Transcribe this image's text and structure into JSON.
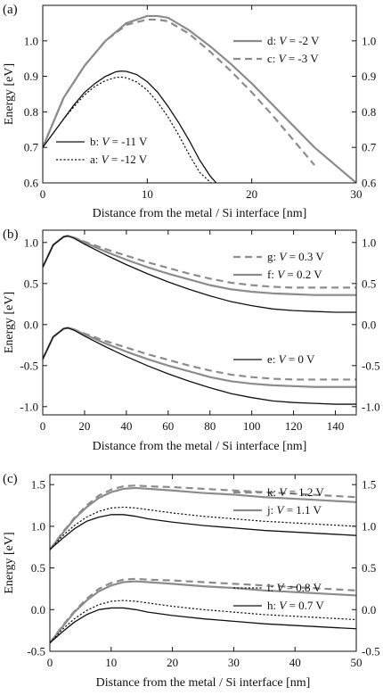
{
  "panels": [
    {
      "panel_label": "(a)",
      "chart_data": {
        "type": "line",
        "xlabel": "Distance from the metal / Si interface [nm]",
        "ylabel": "Energy [eV]",
        "xlim": [
          0,
          30
        ],
        "ylim": [
          0.6,
          1.1
        ],
        "x_ticks": [
          0,
          10,
          20,
          30
        ],
        "y_ticks": [
          0.6,
          0.7,
          0.8,
          0.9,
          1.0
        ],
        "y_tick_labels": [
          "0.6",
          "0.7",
          "0.8",
          "0.9",
          "1.0"
        ],
        "right_axis": true,
        "legend": [
          {
            "position": "top-right",
            "entries": [
              {
                "key": "d",
                "prefix": "d: ",
                "var": "V",
                "value": " = -2 V"
              },
              {
                "key": "c",
                "prefix": "c: ",
                "var": "V",
                "value": " = -3 V"
              }
            ]
          },
          {
            "position": "bottom-left",
            "entries": [
              {
                "key": "b",
                "prefix": "b: ",
                "var": "V",
                "value": " = -11 V"
              },
              {
                "key": "a",
                "prefix": "a: ",
                "var": "V",
                "value": " = -12 V"
              }
            ]
          }
        ],
        "series": [
          {
            "name": "d",
            "style": "gray-solid",
            "x": [
              0,
              1,
              2,
              4,
              6,
              8,
              10,
              11,
              12,
              14,
              16,
              18,
              20,
              22,
              24,
              26,
              28,
              30
            ],
            "y": [
              0.7,
              0.77,
              0.84,
              0.93,
              1.0,
              1.05,
              1.07,
              1.07,
              1.065,
              1.03,
              0.985,
              0.935,
              0.88,
              0.82,
              0.76,
              0.7,
              0.65,
              0.6
            ]
          },
          {
            "name": "c",
            "style": "gray-dashed",
            "x": [
              0,
              1,
              2,
              4,
              6,
              8,
              10,
              11,
              12,
              14,
              16,
              18,
              20,
              22,
              24,
              26
            ],
            "y": [
              0.7,
              0.77,
              0.84,
              0.93,
              1.0,
              1.045,
              1.06,
              1.06,
              1.055,
              1.02,
              0.97,
              0.915,
              0.855,
              0.79,
              0.72,
              0.65
            ]
          },
          {
            "name": "b",
            "style": "black-solid",
            "x": [
              0,
              1,
              2,
              3,
              4,
              5,
              6,
              7,
              7.5,
              8,
              9,
              10,
              11,
              12,
              13,
              14,
              15,
              16,
              16.6
            ],
            "y": [
              0.7,
              0.74,
              0.78,
              0.82,
              0.855,
              0.88,
              0.9,
              0.913,
              0.915,
              0.914,
              0.905,
              0.885,
              0.855,
              0.815,
              0.77,
              0.72,
              0.665,
              0.62,
              0.6
            ]
          },
          {
            "name": "a",
            "style": "black-dotted",
            "x": [
              0,
              1,
              2,
              3,
              4,
              5,
              6,
              7,
              7.5,
              8,
              9,
              10,
              11,
              12,
              13,
              14,
              15,
              16.1
            ],
            "y": [
              0.7,
              0.74,
              0.78,
              0.815,
              0.848,
              0.872,
              0.888,
              0.897,
              0.898,
              0.896,
              0.884,
              0.861,
              0.827,
              0.785,
              0.735,
              0.68,
              0.63,
              0.6
            ]
          }
        ]
      }
    },
    {
      "panel_label": "(b)",
      "chart_data": {
        "type": "line",
        "xlabel": "Distance from the metal / Si interface [nm]",
        "ylabel": "Energy [eV]",
        "xlim": [
          0,
          150
        ],
        "ylim": [
          -1.1,
          1.15
        ],
        "x_ticks": [
          0,
          20,
          40,
          60,
          80,
          100,
          120,
          140
        ],
        "y_ticks": [
          -1.0,
          -0.5,
          0.0,
          0.5,
          1.0
        ],
        "y_tick_labels": [
          "-1.0",
          "-0.5",
          "0.0",
          "0.5",
          "1.0"
        ],
        "right_axis": true,
        "legend": [
          {
            "position": "top-right",
            "entries": [
              {
                "key": "g",
                "prefix": "g: ",
                "var": "V",
                "value": " = 0.3 V"
              },
              {
                "key": "f",
                "prefix": "f: ",
                "var": "V",
                "value": " = 0.2 V"
              }
            ]
          },
          {
            "position": "middle-right",
            "entries": [
              {
                "key": "e",
                "prefix": "e: ",
                "var": "V",
                "value": " = 0 V"
              }
            ]
          }
        ],
        "series": [
          {
            "name": "g",
            "style": "gray-dashed",
            "x": [
              0,
              5,
              10,
              12,
              15,
              20,
              30,
              40,
              50,
              60,
              70,
              80,
              90,
              100,
              110,
              120,
              130,
              140,
              150
            ],
            "y": [
              0.7,
              0.97,
              1.07,
              1.08,
              1.06,
              1.01,
              0.92,
              0.84,
              0.76,
              0.69,
              0.62,
              0.56,
              0.51,
              0.48,
              0.46,
              0.45,
              0.45,
              0.45,
              0.45
            ]
          },
          {
            "name": "f",
            "style": "gray-solid",
            "x": [
              0,
              5,
              10,
              12,
              15,
              20,
              30,
              40,
              50,
              60,
              70,
              80,
              90,
              100,
              110,
              120,
              130,
              140,
              150
            ],
            "y": [
              0.7,
              0.97,
              1.07,
              1.08,
              1.06,
              1.0,
              0.89,
              0.79,
              0.7,
              0.62,
              0.55,
              0.48,
              0.43,
              0.4,
              0.38,
              0.37,
              0.36,
              0.36,
              0.36
            ]
          },
          {
            "name": "e",
            "style": "black-solid",
            "x": [
              0,
              5,
              10,
              12,
              15,
              20,
              30,
              40,
              50,
              60,
              70,
              80,
              90,
              100,
              110,
              120,
              130,
              140,
              150
            ],
            "y": [
              0.7,
              0.97,
              1.07,
              1.08,
              1.05,
              0.98,
              0.85,
              0.73,
              0.62,
              0.52,
              0.43,
              0.35,
              0.28,
              0.23,
              0.19,
              0.17,
              0.16,
              0.15,
              0.15
            ]
          },
          {
            "name": "g-lower",
            "style": "gray-dashed",
            "x": [
              0,
              5,
              10,
              12,
              15,
              20,
              30,
              40,
              50,
              60,
              70,
              80,
              90,
              100,
              110,
              120,
              130,
              140,
              150
            ],
            "y": [
              -0.42,
              -0.15,
              -0.05,
              -0.04,
              -0.06,
              -0.11,
              -0.2,
              -0.28,
              -0.36,
              -0.43,
              -0.5,
              -0.56,
              -0.61,
              -0.64,
              -0.66,
              -0.67,
              -0.67,
              -0.67,
              -0.67
            ]
          },
          {
            "name": "f-lower",
            "style": "gray-solid",
            "x": [
              0,
              5,
              10,
              12,
              15,
              20,
              30,
              40,
              50,
              60,
              70,
              80,
              90,
              100,
              110,
              120,
              130,
              140,
              150
            ],
            "y": [
              -0.42,
              -0.15,
              -0.05,
              -0.04,
              -0.06,
              -0.12,
              -0.23,
              -0.33,
              -0.42,
              -0.5,
              -0.57,
              -0.64,
              -0.69,
              -0.72,
              -0.74,
              -0.75,
              -0.76,
              -0.76,
              -0.76
            ]
          },
          {
            "name": "e-lower",
            "style": "black-solid",
            "x": [
              0,
              5,
              10,
              12,
              15,
              20,
              30,
              40,
              50,
              60,
              70,
              80,
              90,
              100,
              110,
              120,
              130,
              140,
              150
            ],
            "y": [
              -0.42,
              -0.15,
              -0.05,
              -0.04,
              -0.07,
              -0.14,
              -0.27,
              -0.39,
              -0.5,
              -0.6,
              -0.69,
              -0.77,
              -0.84,
              -0.89,
              -0.93,
              -0.95,
              -0.96,
              -0.97,
              -0.97
            ]
          }
        ]
      }
    },
    {
      "panel_label": "(c)",
      "chart_data": {
        "type": "line",
        "xlabel": "Distance from the metal / Si interface [nm]",
        "ylabel": "Energy [eV]",
        "xlim": [
          0,
          50
        ],
        "ylim": [
          -0.5,
          1.62
        ],
        "x_ticks": [
          0,
          10,
          20,
          30,
          40,
          50
        ],
        "y_ticks": [
          -0.5,
          0.0,
          0.5,
          1.0,
          1.5
        ],
        "y_tick_labels": [
          "-0.5",
          "0.0",
          "0.5",
          "1.0",
          "1.5"
        ],
        "right_axis": true,
        "legend": [
          {
            "position": "top-right",
            "entries": [
              {
                "key": "k",
                "prefix": "k: ",
                "var": "V",
                "value": " = 1.2 V"
              },
              {
                "key": "j",
                "prefix": "j: ",
                "var": "V",
                "value": " = 1.1 V"
              }
            ]
          },
          {
            "position": "middle-right",
            "entries": [
              {
                "key": "i",
                "prefix": "i: ",
                "var": "V",
                "value": " = 0.8 V"
              },
              {
                "key": "h",
                "prefix": "h: ",
                "var": "V",
                "value": " = 0.7 V"
              }
            ]
          }
        ],
        "series": [
          {
            "name": "k",
            "style": "gray-dashed",
            "x": [
              0,
              2,
              4,
              6,
              8,
              10,
              12,
              14,
              16,
              20,
              25,
              30,
              35,
              40,
              45,
              50
            ],
            "y": [
              0.72,
              0.92,
              1.1,
              1.25,
              1.37,
              1.44,
              1.48,
              1.49,
              1.48,
              1.47,
              1.45,
              1.43,
              1.41,
              1.39,
              1.37,
              1.35
            ]
          },
          {
            "name": "j",
            "style": "gray-solid",
            "x": [
              0,
              2,
              4,
              6,
              8,
              10,
              12,
              14,
              16,
              20,
              25,
              30,
              35,
              40,
              45,
              50
            ],
            "y": [
              0.72,
              0.91,
              1.09,
              1.23,
              1.34,
              1.41,
              1.45,
              1.46,
              1.45,
              1.43,
              1.4,
              1.38,
              1.35,
              1.33,
              1.31,
              1.29
            ]
          },
          {
            "name": "i",
            "style": "black-dotted",
            "x": [
              0,
              2,
              4,
              6,
              8,
              10,
              12,
              14,
              16,
              20,
              25,
              30,
              35,
              40,
              45,
              50
            ],
            "y": [
              0.72,
              0.88,
              1.01,
              1.11,
              1.18,
              1.22,
              1.23,
              1.22,
              1.2,
              1.16,
              1.12,
              1.09,
              1.06,
              1.04,
              1.02,
              1.0
            ]
          },
          {
            "name": "h",
            "style": "black-solid",
            "x": [
              0,
              2,
              4,
              6,
              8,
              10,
              12,
              14,
              16,
              20,
              25,
              30,
              35,
              40,
              45,
              50
            ],
            "y": [
              0.72,
              0.85,
              0.97,
              1.06,
              1.11,
              1.14,
              1.14,
              1.12,
              1.09,
              1.05,
              1.01,
              0.98,
              0.95,
              0.93,
              0.91,
              0.89
            ]
          },
          {
            "name": "k-lower",
            "style": "gray-dashed",
            "x": [
              0,
              2,
              4,
              6,
              8,
              10,
              12,
              14,
              16,
              20,
              25,
              30,
              35,
              40,
              45,
              50
            ],
            "y": [
              -0.4,
              -0.2,
              -0.02,
              0.13,
              0.25,
              0.32,
              0.36,
              0.37,
              0.36,
              0.35,
              0.33,
              0.31,
              0.29,
              0.27,
              0.25,
              0.23
            ]
          },
          {
            "name": "j-lower",
            "style": "gray-solid",
            "x": [
              0,
              2,
              4,
              6,
              8,
              10,
              12,
              14,
              16,
              20,
              25,
              30,
              35,
              40,
              45,
              50
            ],
            "y": [
              -0.4,
              -0.21,
              -0.03,
              0.11,
              0.22,
              0.29,
              0.33,
              0.34,
              0.33,
              0.31,
              0.28,
              0.26,
              0.23,
              0.21,
              0.19,
              0.17
            ]
          },
          {
            "name": "i-lower",
            "style": "black-dotted",
            "x": [
              0,
              2,
              4,
              6,
              8,
              10,
              12,
              14,
              16,
              20,
              25,
              30,
              35,
              40,
              45,
              50
            ],
            "y": [
              -0.4,
              -0.24,
              -0.11,
              -0.01,
              0.06,
              0.1,
              0.11,
              0.1,
              0.08,
              0.04,
              0.0,
              -0.03,
              -0.06,
              -0.08,
              -0.1,
              -0.12
            ]
          },
          {
            "name": "h-lower",
            "style": "black-solid",
            "x": [
              0,
              2,
              4,
              6,
              8,
              10,
              12,
              14,
              16,
              20,
              25,
              30,
              35,
              40,
              45,
              50
            ],
            "y": [
              -0.4,
              -0.27,
              -0.15,
              -0.06,
              0.0,
              0.02,
              0.02,
              0.0,
              -0.03,
              -0.07,
              -0.11,
              -0.14,
              -0.17,
              -0.19,
              -0.21,
              -0.23
            ]
          }
        ]
      }
    }
  ],
  "colors": {
    "gray": "#8c8c8c",
    "black": "#111111"
  }
}
